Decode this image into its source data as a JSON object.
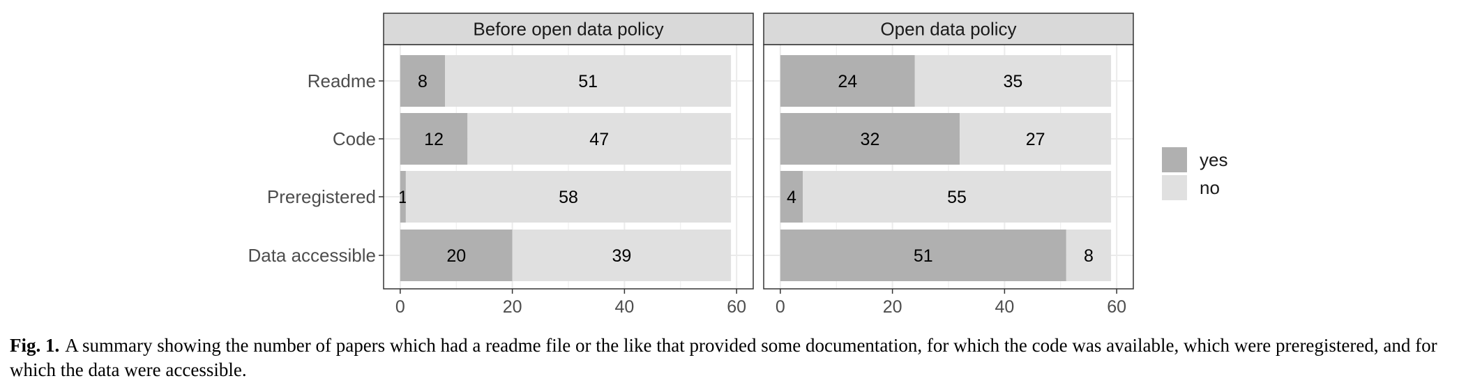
{
  "chart_data": {
    "type": "bar",
    "orientation": "horizontal",
    "stacked": true,
    "categories": [
      "Readme",
      "Code",
      "Preregistered",
      "Data accessible"
    ],
    "xlim": [
      0,
      60
    ],
    "xticks": [
      0,
      20,
      40,
      60
    ],
    "grid": true,
    "legend_position": "right",
    "legend": [
      {
        "label": "yes",
        "color": "#b0b0b0"
      },
      {
        "label": "no",
        "color": "#e0e0e0"
      }
    ],
    "panels": [
      {
        "title": "Before open data policy",
        "series": [
          {
            "name": "yes",
            "values": [
              8,
              12,
              1,
              20
            ]
          },
          {
            "name": "no",
            "values": [
              51,
              47,
              58,
              39
            ]
          }
        ]
      },
      {
        "title": "Open data policy",
        "series": [
          {
            "name": "yes",
            "values": [
              24,
              32,
              4,
              51
            ]
          },
          {
            "name": "no",
            "values": [
              35,
              27,
              55,
              8
            ]
          }
        ]
      }
    ]
  },
  "caption": {
    "label": "Fig. 1.",
    "text": "A summary showing the number of papers which had a readme file or the like that provided some documentation, for which the code was available, which were preregistered, and for which the data were accessible."
  }
}
